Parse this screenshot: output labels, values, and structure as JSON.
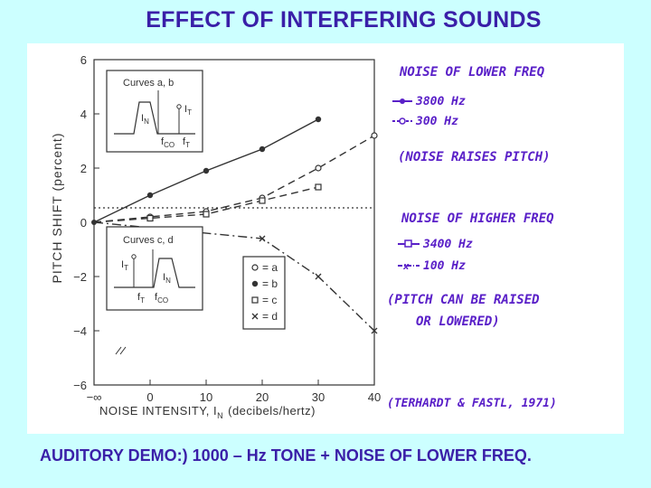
{
  "slide": {
    "title": "EFFECT OF INTERFERING SOUNDS",
    "caption": "AUDITORY DEMO:) 1000 – Hz TONE + NOISE OF LOWER FREQ."
  },
  "colors": {
    "background": "#ccffff",
    "title": "#3a1fa8",
    "handwriting": "#5a20c8",
    "ink": "#333333"
  },
  "chart_data": {
    "type": "line",
    "xlabel": "NOISE INTENSITY, I",
    "xlabel_sub": "N",
    "xlabel_units": "(decibels/hertz)",
    "ylabel": "PITCH SHIFT (percent)",
    "x_ticks": [
      "−∞",
      "0",
      "10",
      "20",
      "30",
      "40"
    ],
    "y_ticks": [
      6,
      4,
      2,
      0,
      -2,
      -4,
      -6
    ],
    "ylim": [
      -6,
      6
    ],
    "xlim": [
      -10,
      40
    ],
    "series": [
      {
        "name": "a",
        "marker": "open-circle",
        "style": "dashed",
        "x": [
          -10,
          0,
          10,
          20,
          30,
          40
        ],
        "y": [
          0,
          0.2,
          0.4,
          0.9,
          2.0,
          3.2
        ]
      },
      {
        "name": "b",
        "marker": "filled-circle",
        "style": "solid",
        "x": [
          -10,
          0,
          10,
          20,
          30
        ],
        "y": [
          0,
          1.0,
          1.9,
          2.7,
          3.8
        ]
      },
      {
        "name": "c",
        "marker": "open-square",
        "style": "dashed",
        "x": [
          -10,
          0,
          10,
          20,
          30
        ],
        "y": [
          0,
          0.15,
          0.3,
          0.8,
          1.3
        ]
      },
      {
        "name": "d",
        "marker": "x",
        "style": "dash-dot",
        "x": [
          -10,
          20,
          30,
          40
        ],
        "y": [
          0,
          -0.6,
          -2.0,
          -4.0
        ]
      }
    ],
    "legend": {
      "items": [
        {
          "marker": "open-circle",
          "label": "= a"
        },
        {
          "marker": "filled-circle",
          "label": "= b"
        },
        {
          "marker": "open-square",
          "label": "= c"
        },
        {
          "marker": "x",
          "label": "= d"
        }
      ]
    },
    "inset_top": {
      "title": "Curves a, b",
      "labels": {
        "IT": "I",
        "IT_sub": "T",
        "IN": "I",
        "IN_sub": "N",
        "fCO": "f",
        "fCO_sub": "CO",
        "fT": "f",
        "fT_sub": "T"
      }
    },
    "inset_bottom": {
      "title": "Curves c, d",
      "labels": {
        "IT": "I",
        "IT_sub": "T",
        "IN": "I",
        "IN_sub": "N",
        "fT": "f",
        "fT_sub": "T",
        "fCO": "f",
        "fCO_sub": "CO"
      }
    }
  },
  "annotations": {
    "lower_title": "NOISE OF LOWER FREQ",
    "lower_items": [
      "3800 Hz",
      "300 Hz"
    ],
    "raises": "(NOISE RAISES PITCH)",
    "higher_title": "NOISE OF HIGHER FREQ",
    "higher_items": [
      "3400 Hz",
      "100 Hz"
    ],
    "can_be": "(PITCH CAN BE RAISED",
    "or_lowered": "OR LOWERED)",
    "citation": "(TERHARDT & FASTL, 1971)"
  }
}
